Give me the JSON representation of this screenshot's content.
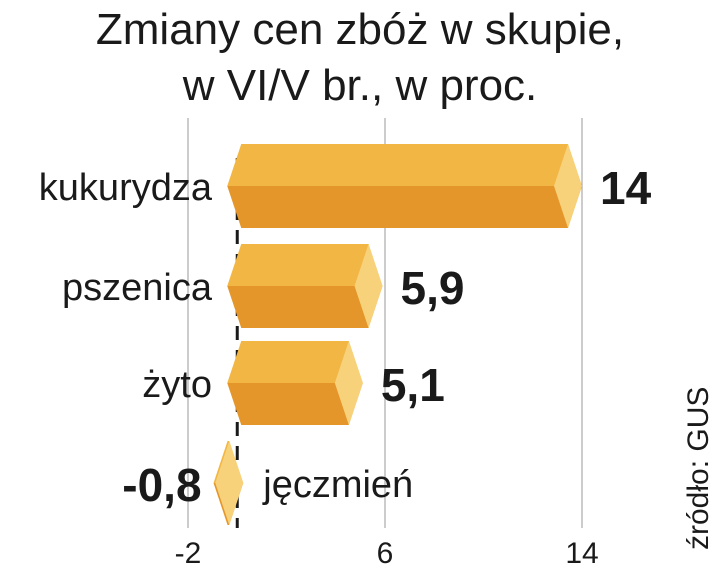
{
  "chart_data": {
    "type": "bar",
    "orientation": "horizontal",
    "title": "Zmiany cen zbóż w skupie,",
    "subtitle": "w VI/V br., w proc.",
    "categories": [
      "kukurydza",
      "pszenica",
      "żyto",
      "jęczmień"
    ],
    "values": [
      14,
      5.9,
      5.1,
      -0.8
    ],
    "value_labels": [
      "14",
      "5,9",
      "5,1",
      "-0,8"
    ],
    "xlim": [
      -2,
      14
    ],
    "x_ticks": [
      -2,
      6,
      14
    ],
    "x_tick_labels": [
      "-2",
      "6",
      "14"
    ],
    "grid": true,
    "source": "źródło: GUS",
    "colors": {
      "bar_top": "#F2B645",
      "bar_bottom": "#E5962A",
      "bar_end": "#F8D27A",
      "grid": "#9a9a9a",
      "zero_line": "#1a1a1a"
    }
  }
}
